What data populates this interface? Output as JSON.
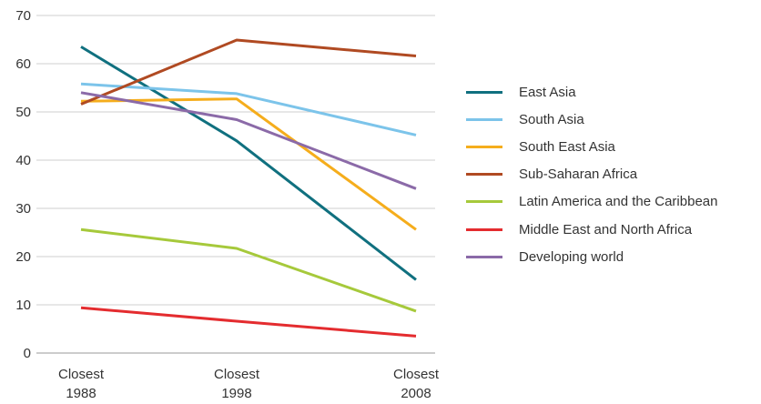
{
  "chart_data": {
    "type": "line",
    "title": "",
    "xlabel": "",
    "ylabel": "",
    "ylim": [
      0,
      70
    ],
    "yticks": [
      0,
      10,
      20,
      30,
      40,
      50,
      60,
      70
    ],
    "grid": true,
    "legend_position": "right",
    "categories": [
      [
        "Closest",
        "1988"
      ],
      [
        "Closest",
        "1998"
      ],
      [
        "Closest",
        "2008"
      ]
    ],
    "series": [
      {
        "name": "East Asia",
        "color": "#10707f",
        "values": [
          63.5,
          44.0,
          15.2
        ]
      },
      {
        "name": "South Asia",
        "color": "#7cc4ea",
        "values": [
          55.8,
          53.8,
          45.2
        ]
      },
      {
        "name": "South East Asia",
        "color": "#f5ad1c",
        "values": [
          52.2,
          52.7,
          25.6
        ]
      },
      {
        "name": "Sub-Saharan Africa",
        "color": "#b04a22",
        "values": [
          51.6,
          64.9,
          61.6
        ]
      },
      {
        "name": "Latin America and the Caribbean",
        "color": "#a6c93b",
        "values": [
          25.6,
          21.7,
          8.7
        ]
      },
      {
        "name": "Middle East and North Africa",
        "color": "#e42c2f",
        "values": [
          9.4,
          6.6,
          3.5
        ]
      },
      {
        "name": "Developing world",
        "color": "#8b6aa8",
        "values": [
          54.0,
          48.4,
          34.1
        ]
      }
    ]
  }
}
